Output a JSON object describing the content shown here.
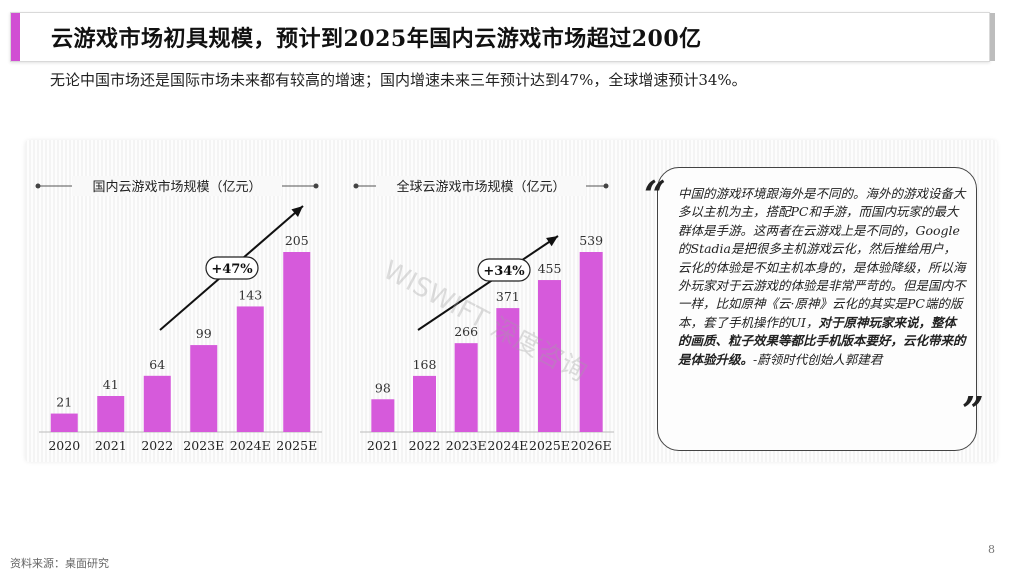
{
  "header": {
    "title": "云游戏市场初具规模，预计到2025年国内云游戏市场超过200亿",
    "subtitle": "无论中国市场还是国际市场未来都有较高的增速；国内增速未来三年预计达到47%，全球增速预计34%。"
  },
  "colors": {
    "accent": "#d14fd3",
    "bar": "#d65adb",
    "text": "#222222"
  },
  "chart_data": [
    {
      "type": "bar",
      "title": "国内云游戏市场规模（亿元）",
      "categories": [
        "2020",
        "2021",
        "2022",
        "2023E",
        "2024E",
        "2025E"
      ],
      "values": [
        21,
        41,
        64,
        99,
        143,
        205
      ],
      "annotation": "+47%",
      "ylim": [
        0,
        205
      ]
    },
    {
      "type": "bar",
      "title": "全球云游戏市场规模（亿元）",
      "categories": [
        "2021",
        "2022",
        "2023E",
        "2024E",
        "2025E",
        "2026E"
      ],
      "values": [
        98,
        168,
        266,
        371,
        455,
        539
      ],
      "annotation": "+34%",
      "ylim": [
        0,
        539
      ]
    }
  ],
  "quote": {
    "open_mark": "“",
    "close_mark": "”",
    "text_plain": "中国的游戏环境跟海外是不同的。海外的游戏设备大多以主机为主，搭配PC和手游，而国内玩家的最大群体是手游。这两者在云游戏上是不同的，Google 的Stadia是把很多主机游戏云化，然后推给用户，云化的体验是不如主机本身的，是体验降级，所以海外玩家对于云游戏的体验是非常严苛的。但是国内不一样，比如原神《云·原神》云化的其实是PC端的版本，套了手机操作的UI，",
    "text_bold": "对于原神玩家来说，整体的画质、粒子效果等都比手机版本要好，云化带来的是体验升级。",
    "attribution": "-蔚领时代创始人郭建君"
  },
  "watermark": "WISWIFT 深度咨询",
  "footer": {
    "source": "资料来源：桌面研究",
    "page_number": "8"
  }
}
